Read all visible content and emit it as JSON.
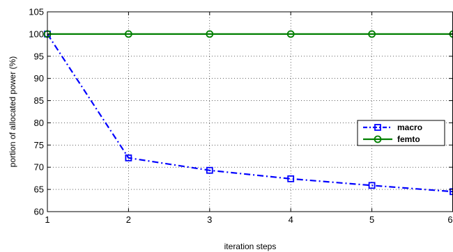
{
  "chart_data": {
    "type": "line",
    "xlabel": "iteration steps",
    "ylabel": "portion of allocated power  (%)",
    "xlim": [
      1,
      6
    ],
    "ylim": [
      60,
      105
    ],
    "xticks": [
      1,
      2,
      3,
      4,
      5,
      6
    ],
    "yticks": [
      60,
      65,
      70,
      75,
      80,
      85,
      90,
      95,
      100,
      105
    ],
    "grid": true,
    "legend_position": "right",
    "series": [
      {
        "name": "macro",
        "color": "#0000ff",
        "line_style": "dash-dot",
        "marker": "square",
        "x": [
          1,
          2,
          3,
          4,
          5,
          6
        ],
        "y": [
          100,
          72.1,
          69.3,
          67.4,
          65.9,
          64.5
        ]
      },
      {
        "name": "femto",
        "color": "#007f00",
        "line_style": "solid",
        "marker": "circle",
        "x": [
          1,
          2,
          3,
          4,
          5,
          6
        ],
        "y": [
          100,
          100,
          100,
          100,
          100,
          100
        ]
      }
    ]
  }
}
